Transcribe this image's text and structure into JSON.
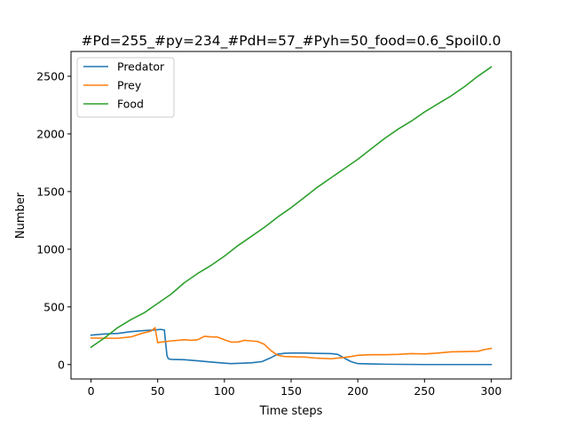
{
  "chart_data": {
    "type": "line",
    "title": "#Pd=255_#py=234_#PdH=57_#Pyh=50_food=0.6_Spoil0.0",
    "xlabel": "Time steps",
    "ylabel": "Number",
    "xlim": [
      -15,
      315
    ],
    "ylim": [
      -125,
      2715
    ],
    "xticks": [
      0,
      50,
      100,
      150,
      200,
      250,
      300
    ],
    "yticks": [
      0,
      500,
      1000,
      1500,
      2000,
      2500
    ],
    "grid": false,
    "legend_position": "top-left",
    "series": [
      {
        "name": "Predator",
        "color": "#1f77b4",
        "points": [
          [
            0,
            255
          ],
          [
            10,
            265
          ],
          [
            20,
            270
          ],
          [
            30,
            285
          ],
          [
            40,
            295
          ],
          [
            48,
            300
          ],
          [
            52,
            305
          ],
          [
            55,
            300
          ],
          [
            56,
            180
          ],
          [
            57,
            75
          ],
          [
            58,
            50
          ],
          [
            60,
            45
          ],
          [
            70,
            42
          ],
          [
            80,
            32
          ],
          [
            90,
            22
          ],
          [
            100,
            12
          ],
          [
            105,
            8
          ],
          [
            110,
            10
          ],
          [
            120,
            15
          ],
          [
            128,
            25
          ],
          [
            135,
            60
          ],
          [
            140,
            90
          ],
          [
            145,
            98
          ],
          [
            150,
            100
          ],
          [
            160,
            100
          ],
          [
            170,
            97
          ],
          [
            180,
            95
          ],
          [
            185,
            88
          ],
          [
            190,
            55
          ],
          [
            195,
            25
          ],
          [
            200,
            8
          ],
          [
            210,
            5
          ],
          [
            220,
            3
          ],
          [
            230,
            2
          ],
          [
            240,
            1
          ],
          [
            250,
            0
          ],
          [
            260,
            0
          ],
          [
            270,
            0
          ],
          [
            280,
            0
          ],
          [
            290,
            0
          ],
          [
            300,
            0
          ]
        ]
      },
      {
        "name": "Prey",
        "color": "#ff7f0e",
        "points": [
          [
            0,
            230
          ],
          [
            10,
            228
          ],
          [
            20,
            228
          ],
          [
            30,
            240
          ],
          [
            38,
            270
          ],
          [
            45,
            290
          ],
          [
            48,
            320
          ],
          [
            50,
            190
          ],
          [
            53,
            195
          ],
          [
            60,
            205
          ],
          [
            70,
            215
          ],
          [
            75,
            210
          ],
          [
            80,
            215
          ],
          [
            85,
            245
          ],
          [
            90,
            240
          ],
          [
            95,
            238
          ],
          [
            100,
            215
          ],
          [
            105,
            195
          ],
          [
            110,
            195
          ],
          [
            115,
            210
          ],
          [
            120,
            205
          ],
          [
            125,
            200
          ],
          [
            130,
            175
          ],
          [
            135,
            120
          ],
          [
            140,
            80
          ],
          [
            145,
            70
          ],
          [
            150,
            68
          ],
          [
            160,
            65
          ],
          [
            170,
            55
          ],
          [
            180,
            50
          ],
          [
            190,
            62
          ],
          [
            195,
            70
          ],
          [
            200,
            80
          ],
          [
            210,
            85
          ],
          [
            220,
            85
          ],
          [
            230,
            88
          ],
          [
            240,
            95
          ],
          [
            250,
            92
          ],
          [
            260,
            100
          ],
          [
            270,
            110
          ],
          [
            280,
            112
          ],
          [
            290,
            115
          ],
          [
            295,
            130
          ],
          [
            300,
            140
          ]
        ]
      },
      {
        "name": "Food",
        "color": "#2ca02c",
        "points": [
          [
            0,
            150
          ],
          [
            10,
            230
          ],
          [
            20,
            320
          ],
          [
            30,
            390
          ],
          [
            40,
            450
          ],
          [
            50,
            530
          ],
          [
            60,
            610
          ],
          [
            70,
            710
          ],
          [
            80,
            790
          ],
          [
            90,
            860
          ],
          [
            100,
            940
          ],
          [
            110,
            1030
          ],
          [
            120,
            1110
          ],
          [
            130,
            1190
          ],
          [
            140,
            1280
          ],
          [
            150,
            1360
          ],
          [
            160,
            1450
          ],
          [
            170,
            1540
          ],
          [
            180,
            1620
          ],
          [
            190,
            1700
          ],
          [
            200,
            1780
          ],
          [
            210,
            1870
          ],
          [
            220,
            1960
          ],
          [
            230,
            2040
          ],
          [
            240,
            2110
          ],
          [
            250,
            2190
          ],
          [
            260,
            2260
          ],
          [
            270,
            2330
          ],
          [
            280,
            2410
          ],
          [
            290,
            2500
          ],
          [
            300,
            2580
          ]
        ]
      }
    ]
  }
}
